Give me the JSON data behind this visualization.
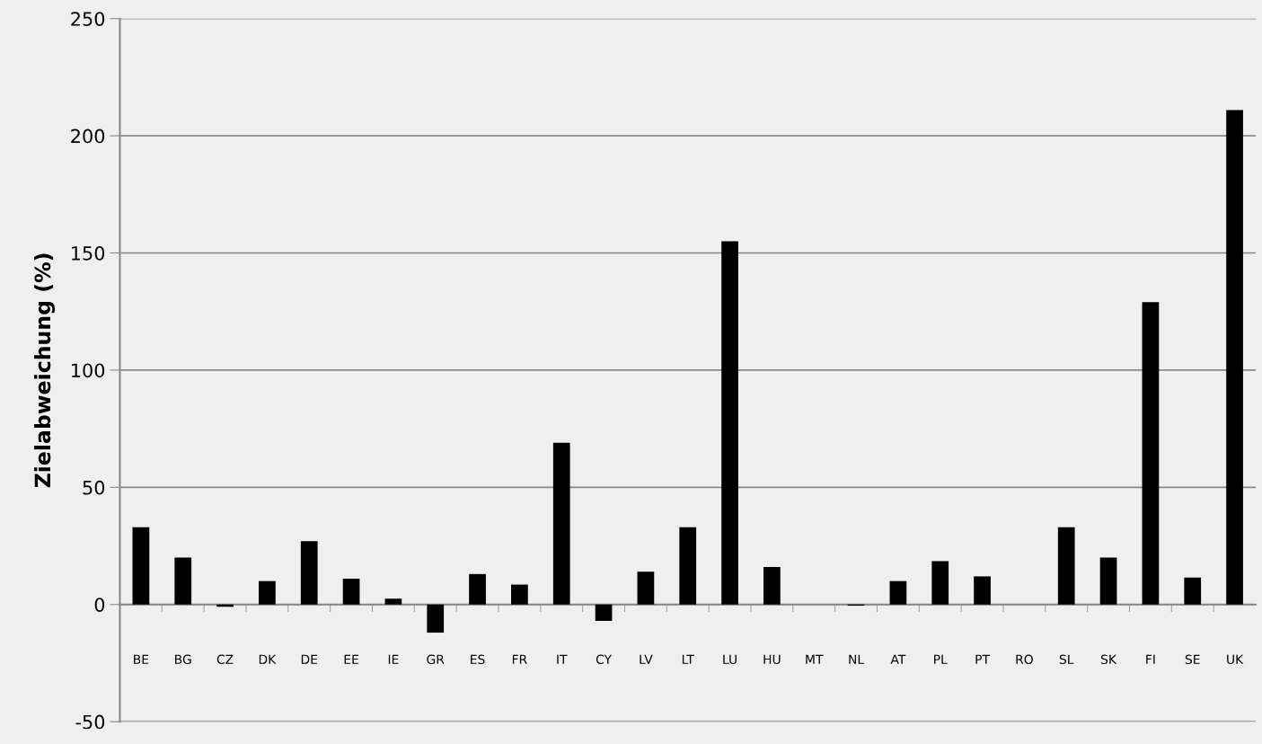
{
  "chart_data": {
    "type": "bar",
    "ylabel": "Zielabweichung (%)",
    "categories": [
      "BE",
      "BG",
      "CZ",
      "DK",
      "DE",
      "EE",
      "IE",
      "GR",
      "ES",
      "FR",
      "IT",
      "CY",
      "LV",
      "LT",
      "LU",
      "HU",
      "MT",
      "NL",
      "AT",
      "PL",
      "PT",
      "RO",
      "SL",
      "SK",
      "FI",
      "SE",
      "UK"
    ],
    "values": [
      33,
      20,
      -1,
      10,
      27,
      11,
      2.5,
      -12,
      13,
      8.5,
      69,
      -7,
      14,
      33,
      155,
      16,
      0,
      -0.5,
      10,
      18.5,
      12,
      0,
      33,
      20,
      129,
      11.5,
      211
    ],
    "color": "#000000",
    "ylim": [
      -50,
      250
    ],
    "yticks": [
      -50,
      0,
      50,
      100,
      150,
      200,
      250
    ],
    "grid": "y"
  }
}
